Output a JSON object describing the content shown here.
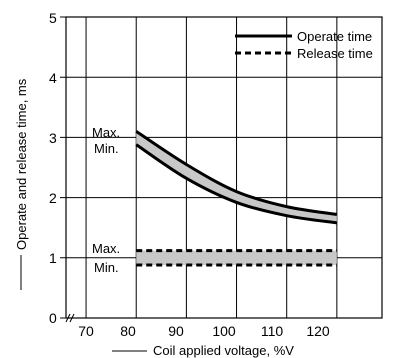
{
  "chart_data": {
    "type": "line",
    "xlabel": "Coil applied voltage, %V",
    "ylabel": "Operate and release time, ms",
    "xlim": [
      66,
      129
    ],
    "ylim": [
      0,
      5
    ],
    "x_ticks": [
      "70",
      "80",
      "90",
      "100",
      "110",
      "120"
    ],
    "y_ticks": [
      "0",
      "1",
      "2",
      "3",
      "4",
      "5"
    ],
    "grid": true,
    "legend_position": "top-right",
    "series": [
      {
        "name": "Operate time",
        "style": "solid",
        "band": "Max",
        "x": [
          80,
          90,
          100,
          110,
          120
        ],
        "y": [
          3.1,
          2.55,
          2.1,
          1.85,
          1.72
        ]
      },
      {
        "name": "Operate time",
        "style": "solid",
        "band": "Min",
        "x": [
          80,
          90,
          100,
          110,
          120
        ],
        "y": [
          2.88,
          2.32,
          1.92,
          1.7,
          1.58
        ]
      },
      {
        "name": "Release time",
        "style": "dashed",
        "band": "Max",
        "x": [
          80,
          120
        ],
        "y": [
          1.12,
          1.12
        ]
      },
      {
        "name": "Release time",
        "style": "dashed",
        "band": "Min",
        "x": [
          80,
          120
        ],
        "y": [
          0.88,
          0.88
        ]
      }
    ],
    "legend": [
      {
        "label": "Operate time",
        "style": "solid"
      },
      {
        "label": "Release time",
        "style": "dashed"
      }
    ],
    "annotations": {
      "operate_max": "Max.",
      "operate_min": "Min.",
      "release_max": "Max.",
      "release_min": "Min."
    },
    "colors": {
      "line": "#000000",
      "band_fill": "#c8c8c8",
      "grid": "#000000"
    }
  }
}
